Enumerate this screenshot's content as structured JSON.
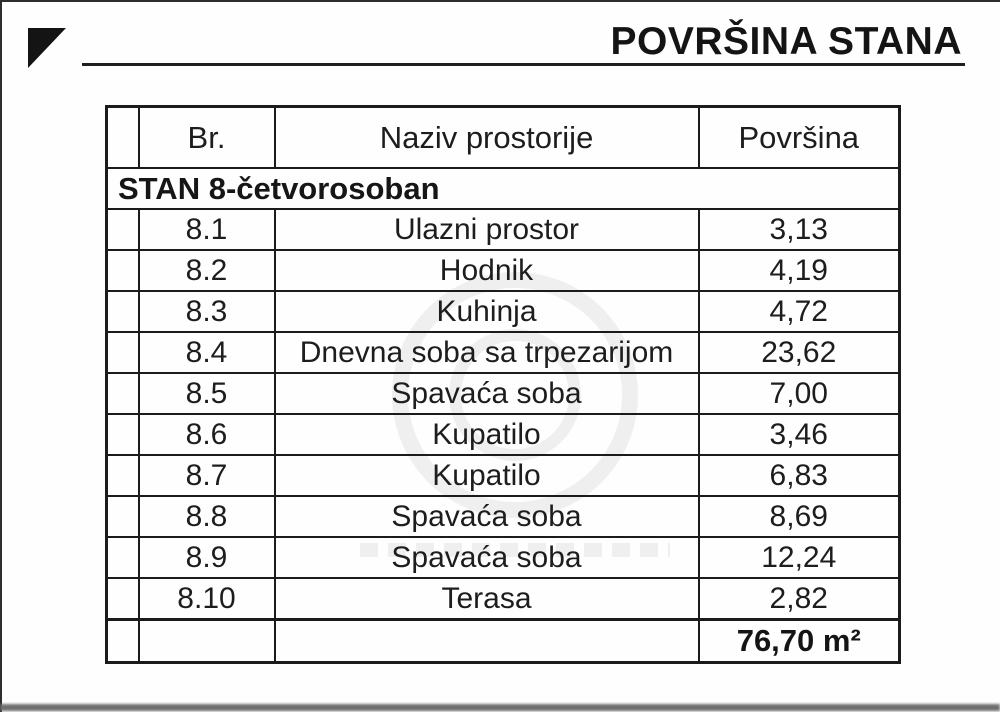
{
  "header": {
    "title": "POVRŠINA STANA"
  },
  "table": {
    "columns": {
      "br": "Br.",
      "naziv": "Naziv prostorije",
      "povrsina": "Površina"
    },
    "section_label": "STAN 8-četvorosoban",
    "rows": [
      {
        "br": "8.1",
        "naziv": "Ulazni prostor",
        "povrsina": "3,13"
      },
      {
        "br": "8.2",
        "naziv": "Hodnik",
        "povrsina": "4,19"
      },
      {
        "br": "8.3",
        "naziv": "Kuhinja",
        "povrsina": "4,72"
      },
      {
        "br": "8.4",
        "naziv": "Dnevna soba sa trpezarijom",
        "povrsina": "23,62"
      },
      {
        "br": "8.5",
        "naziv": "Spavaća soba",
        "povrsina": "7,00"
      },
      {
        "br": "8.6",
        "naziv": "Kupatilo",
        "povrsina": "3,46"
      },
      {
        "br": "8.7",
        "naziv": "Kupatilo",
        "povrsina": "6,83"
      },
      {
        "br": "8.8",
        "naziv": "Spavaća soba",
        "povrsina": "8,69"
      },
      {
        "br": "8.9",
        "naziv": "Spavaća soba",
        "povrsina": "12,24"
      },
      {
        "br": "8.10",
        "naziv": "Terasa",
        "povrsina": "2,82"
      }
    ],
    "total": "76,70 m²"
  },
  "colors": {
    "ink": "#1b1b1b",
    "paper": "#fefefe"
  }
}
